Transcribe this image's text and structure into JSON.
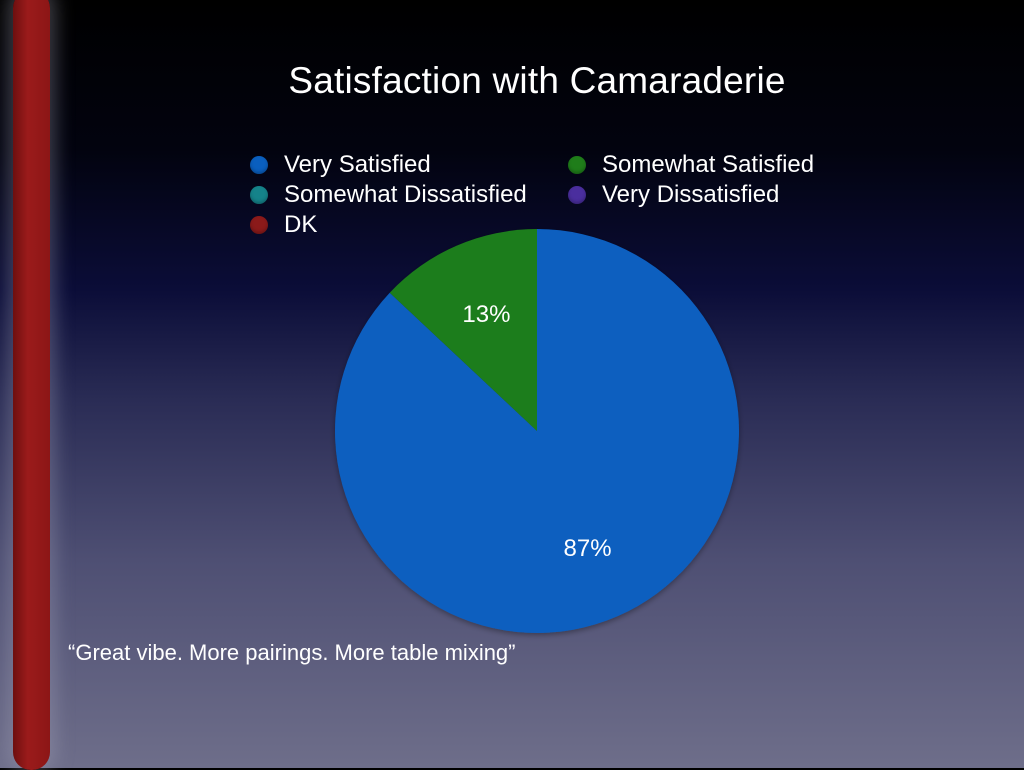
{
  "colors": {
    "very_satisfied": "#0a5fbf",
    "somewhat_satisfied": "#1f7d1a",
    "somewhat_dissatisfied": "#15838a",
    "very_dissatisfied": "#4a2e9e",
    "dk": "#8b1a1a"
  },
  "chart_data": {
    "type": "pie",
    "title": "Satisfaction with Camaraderie",
    "legend_position": "top",
    "categories": [
      "Very Satisfied",
      "Somewhat Satisfied",
      "Somewhat Dissatisfied",
      "Very Dissatisfied",
      "DK"
    ],
    "values": [
      87,
      13,
      0,
      0,
      0
    ],
    "data_labels": [
      "87%",
      "13%",
      "",
      "",
      ""
    ],
    "legend": [
      {
        "label": "Very Satisfied",
        "color": "#0a5fbf"
      },
      {
        "label": "Somewhat Satisfied",
        "color": "#1f7d1a"
      },
      {
        "label": "Somewhat Dissatisfied",
        "color": "#15838a"
      },
      {
        "label": "Very Dissatisfied",
        "color": "#4a2e9e"
      },
      {
        "label": "DK",
        "color": "#8b1a1a"
      }
    ]
  },
  "quote": "“Great vibe. More pairings. More table mixing”"
}
